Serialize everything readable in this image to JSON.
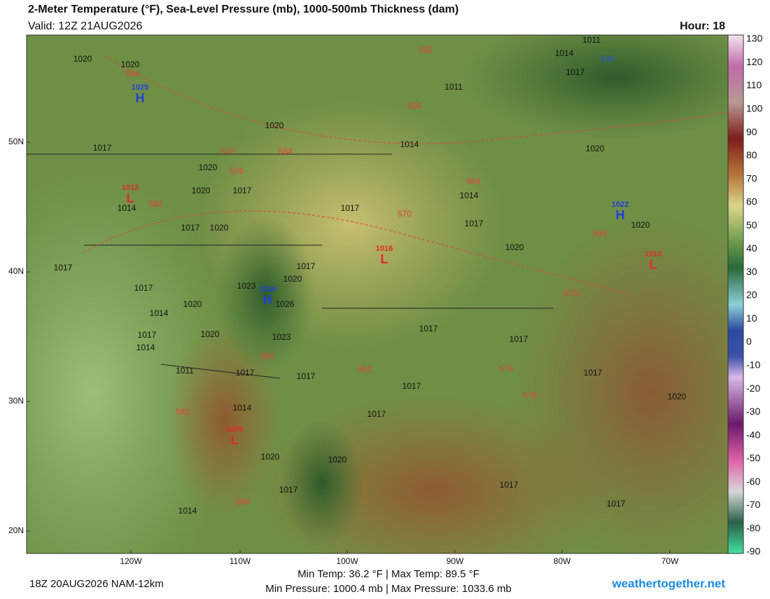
{
  "header": {
    "title": "2-Meter Temperature (°F), Sea-Level Pressure (mb), 1000-500mb Thickness (dam)",
    "valid": "Valid: 12Z 21AUG2026",
    "hour": "Hour: 18"
  },
  "map": {
    "lat_ticks": [
      "50N",
      "40N",
      "30N",
      "20N"
    ],
    "lon_ticks": [
      "120W",
      "110W",
      "100W",
      "90W",
      "80W",
      "70W"
    ],
    "isobar_labels": [
      "1020",
      "1020",
      "1011",
      "1014",
      "1017",
      "1011",
      "1020",
      "1017",
      "1014",
      "1020",
      "1020",
      "1020",
      "1017",
      "1014",
      "1014",
      "1017",
      "1017",
      "1020",
      "1017",
      "1020",
      "1020",
      "1017",
      "1017",
      "1020",
      "1023",
      "1026",
      "1017",
      "1014",
      "1020",
      "1020",
      "1017",
      "1014",
      "1023",
      "1017",
      "1017",
      "1011",
      "1017",
      "1017",
      "1017",
      "1017",
      "1020",
      "1014",
      "1017",
      "1020",
      "1020",
      "1017",
      "1017",
      "1017",
      "1014"
    ],
    "thickness_labels": [
      "552",
      "540",
      "564",
      "558",
      "570",
      "564",
      "576",
      "564",
      "582",
      "570",
      "564",
      "570",
      "582",
      "582",
      "576",
      "576",
      "582",
      "588"
    ],
    "highs": [
      {
        "letter": "H",
        "label": "1025"
      },
      {
        "letter": "H",
        "label": "1034"
      },
      {
        "letter": "H",
        "label": "1022"
      }
    ],
    "lows": [
      {
        "letter": "L",
        "label": "1012"
      },
      {
        "letter": "L",
        "label": "1016"
      },
      {
        "letter": "L",
        "label": "1010"
      },
      {
        "letter": "L",
        "label": "1006"
      }
    ]
  },
  "colorbar": {
    "ticks": [
      130,
      120,
      110,
      100,
      90,
      80,
      70,
      60,
      50,
      40,
      30,
      20,
      10,
      0,
      -10,
      -20,
      -30,
      -40,
      -50,
      -60,
      -70,
      -80,
      -90
    ]
  },
  "footer": {
    "run": "18Z 20AUG2026 NAM-12km",
    "temp": "Min Temp:  36.2 °F | Max Temp:  89.5 °F",
    "pressure": "Min Pressure: 1000.4 mb | Max Pressure: 1033.6 mb",
    "site": "weathertogether.net"
  }
}
